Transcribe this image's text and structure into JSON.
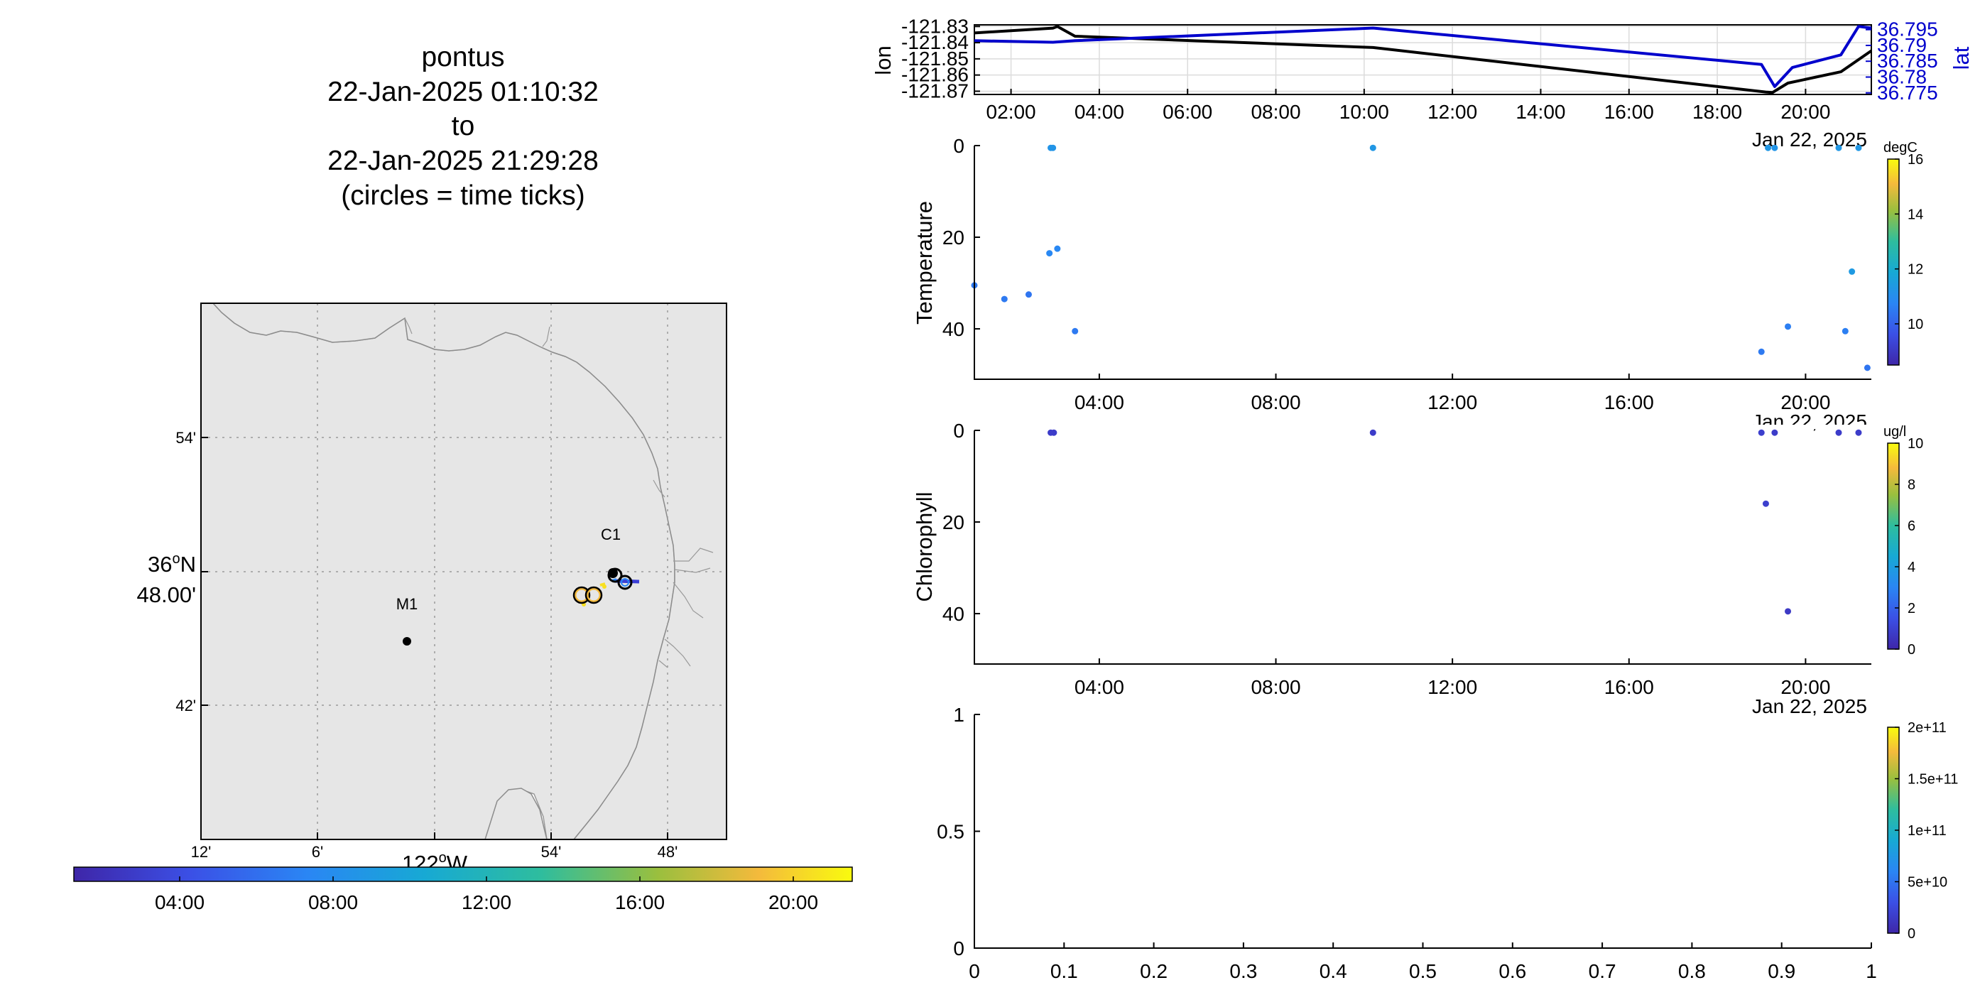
{
  "colors": {
    "land": "#e6e6e6",
    "lon_line": "#000000",
    "lat_line": "#0000cc",
    "grid": "#d9d9d9",
    "track_marker": "#ffe600"
  },
  "map_panel": {
    "title_lines": [
      "pontus",
      "22-Jan-2025 01:10:32",
      "to",
      "22-Jan-2025 21:29:28",
      "(circles = time ticks)"
    ],
    "lat_ticks": [
      "54'",
      "36",
      "48.00'",
      "42'"
    ],
    "lat_degree_sup": "o",
    "lat_degree_suffix": "N",
    "lon_ticks": [
      "12'",
      "6'",
      "54'",
      "48'"
    ],
    "lon_center_label": "122",
    "lon_degree_sup": "o",
    "lon_center_suffix": "W",
    "stations": [
      {
        "name": "M1",
        "lon": -122.02,
        "lat": 36.745
      },
      {
        "name": "C1",
        "lon": -121.848,
        "lat": 36.797
      }
    ],
    "colorbar_ticks": [
      "04:00",
      "08:00",
      "12:00",
      "16:00",
      "20:00"
    ]
  },
  "chart_data": [
    {
      "type": "line",
      "title": "",
      "xlabel": "",
      "ylabel": "lon",
      "y2label": "lat",
      "x_ticks": [
        "02:00",
        "04:00",
        "06:00",
        "08:00",
        "10:00",
        "12:00",
        "14:00",
        "16:00",
        "18:00",
        "20:00"
      ],
      "date_label": "Jan 22, 2025",
      "y_ticks": [
        "-121.83",
        "-121.84",
        "-121.85",
        "-121.86",
        "-121.87"
      ],
      "y2_ticks": [
        "36.795",
        "36.79",
        "36.785",
        "36.78",
        "36.775"
      ],
      "ylim": [
        -121.872,
        -121.829
      ],
      "y2lim": [
        36.7745,
        36.7965
      ],
      "grid": true,
      "series": [
        {
          "name": "lon",
          "axis": "left",
          "x": [
            1.17,
            2.95,
            3.05,
            3.45,
            10.2,
            19.1,
            19.25,
            19.6,
            20.8,
            21.49
          ],
          "values": [
            -121.834,
            -121.831,
            -121.83,
            -121.836,
            -121.843,
            -121.8705,
            -121.8708,
            -121.865,
            -121.858,
            -121.845
          ]
        },
        {
          "name": "lat",
          "axis": "right",
          "x": [
            1.17,
            2.95,
            3.45,
            10.2,
            19.0,
            19.3,
            19.7,
            20.8,
            21.2,
            21.49
          ],
          "values": [
            36.7915,
            36.791,
            36.7915,
            36.7955,
            36.784,
            36.777,
            36.783,
            36.787,
            36.796,
            36.7955
          ]
        }
      ]
    },
    {
      "type": "scatter",
      "ylabel": "Temperature",
      "x_ticks": [
        "04:00",
        "08:00",
        "12:00",
        "16:00",
        "20:00"
      ],
      "date_label": "Jan 22, 2025",
      "y_ticks": [
        "0",
        "20",
        "40"
      ],
      "ylim": [
        0,
        51
      ],
      "y_reversed": true,
      "colorbar_unit": "degC",
      "colorbar_ticks": [
        "16",
        "14",
        "12",
        "10"
      ],
      "clim": [
        8.5,
        16
      ],
      "points": [
        {
          "x": 1.17,
          "y": 30.5,
          "c": 10.5
        },
        {
          "x": 1.85,
          "y": 33.5,
          "c": 10.5
        },
        {
          "x": 2.4,
          "y": 32.5,
          "c": 10.4
        },
        {
          "x": 2.9,
          "y": 0.5,
          "c": 11.2
        },
        {
          "x": 2.95,
          "y": 0.5,
          "c": 11.2
        },
        {
          "x": 2.87,
          "y": 23.5,
          "c": 10.8
        },
        {
          "x": 3.05,
          "y": 22.5,
          "c": 10.8
        },
        {
          "x": 3.45,
          "y": 40.5,
          "c": 10.5
        },
        {
          "x": 10.2,
          "y": 0.5,
          "c": 11.3
        },
        {
          "x": 19.0,
          "y": 45.0,
          "c": 10.5
        },
        {
          "x": 19.15,
          "y": 0.5,
          "c": 11.3
        },
        {
          "x": 19.3,
          "y": 0.5,
          "c": 11.2
        },
        {
          "x": 19.6,
          "y": 39.5,
          "c": 10.6
        },
        {
          "x": 20.75,
          "y": 0.5,
          "c": 11.3
        },
        {
          "x": 20.9,
          "y": 40.5,
          "c": 10.6
        },
        {
          "x": 21.05,
          "y": 27.5,
          "c": 11.4
        },
        {
          "x": 21.2,
          "y": 0.5,
          "c": 11.3
        },
        {
          "x": 21.4,
          "y": 48.5,
          "c": 10.4
        }
      ]
    },
    {
      "type": "scatter",
      "ylabel": "Chlorophyll",
      "x_ticks": [
        "04:00",
        "08:00",
        "12:00",
        "16:00",
        "20:00"
      ],
      "date_label": "Jan 22, 2025",
      "y_ticks": [
        "0",
        "20",
        "40"
      ],
      "ylim": [
        0,
        51
      ],
      "y_reversed": true,
      "colorbar_unit": "ug/l",
      "colorbar_ticks": [
        "10",
        "8",
        "6",
        "4",
        "2",
        "0"
      ],
      "clim": [
        0,
        10
      ],
      "points": [
        {
          "x": 2.9,
          "y": 0.5,
          "c": 0.8
        },
        {
          "x": 2.97,
          "y": 0.5,
          "c": 0.8
        },
        {
          "x": 10.2,
          "y": 0.5,
          "c": 0.8
        },
        {
          "x": 19.0,
          "y": 0.5,
          "c": 0.9
        },
        {
          "x": 19.1,
          "y": 16.0,
          "c": 0.9
        },
        {
          "x": 19.3,
          "y": 0.5,
          "c": 0.8
        },
        {
          "x": 19.6,
          "y": 39.5,
          "c": 0.7
        },
        {
          "x": 20.75,
          "y": 0.5,
          "c": 0.8
        },
        {
          "x": 21.2,
          "y": 0.5,
          "c": 0.8
        }
      ]
    },
    {
      "type": "scatter",
      "ylabel": "",
      "x_ticks": [
        "0",
        "0.1",
        "0.2",
        "0.3",
        "0.4",
        "0.5",
        "0.6",
        "0.7",
        "0.8",
        "0.9",
        "1"
      ],
      "y_ticks": [
        "1",
        "0.5",
        "0"
      ],
      "xlim": [
        0,
        1
      ],
      "ylim": [
        0,
        1
      ],
      "colorbar_ticks": [
        "2e+11",
        "1.5e+11",
        "1e+11",
        "5e+10",
        "0"
      ],
      "clim": [
        0,
        200000000000
      ],
      "points": []
    }
  ]
}
